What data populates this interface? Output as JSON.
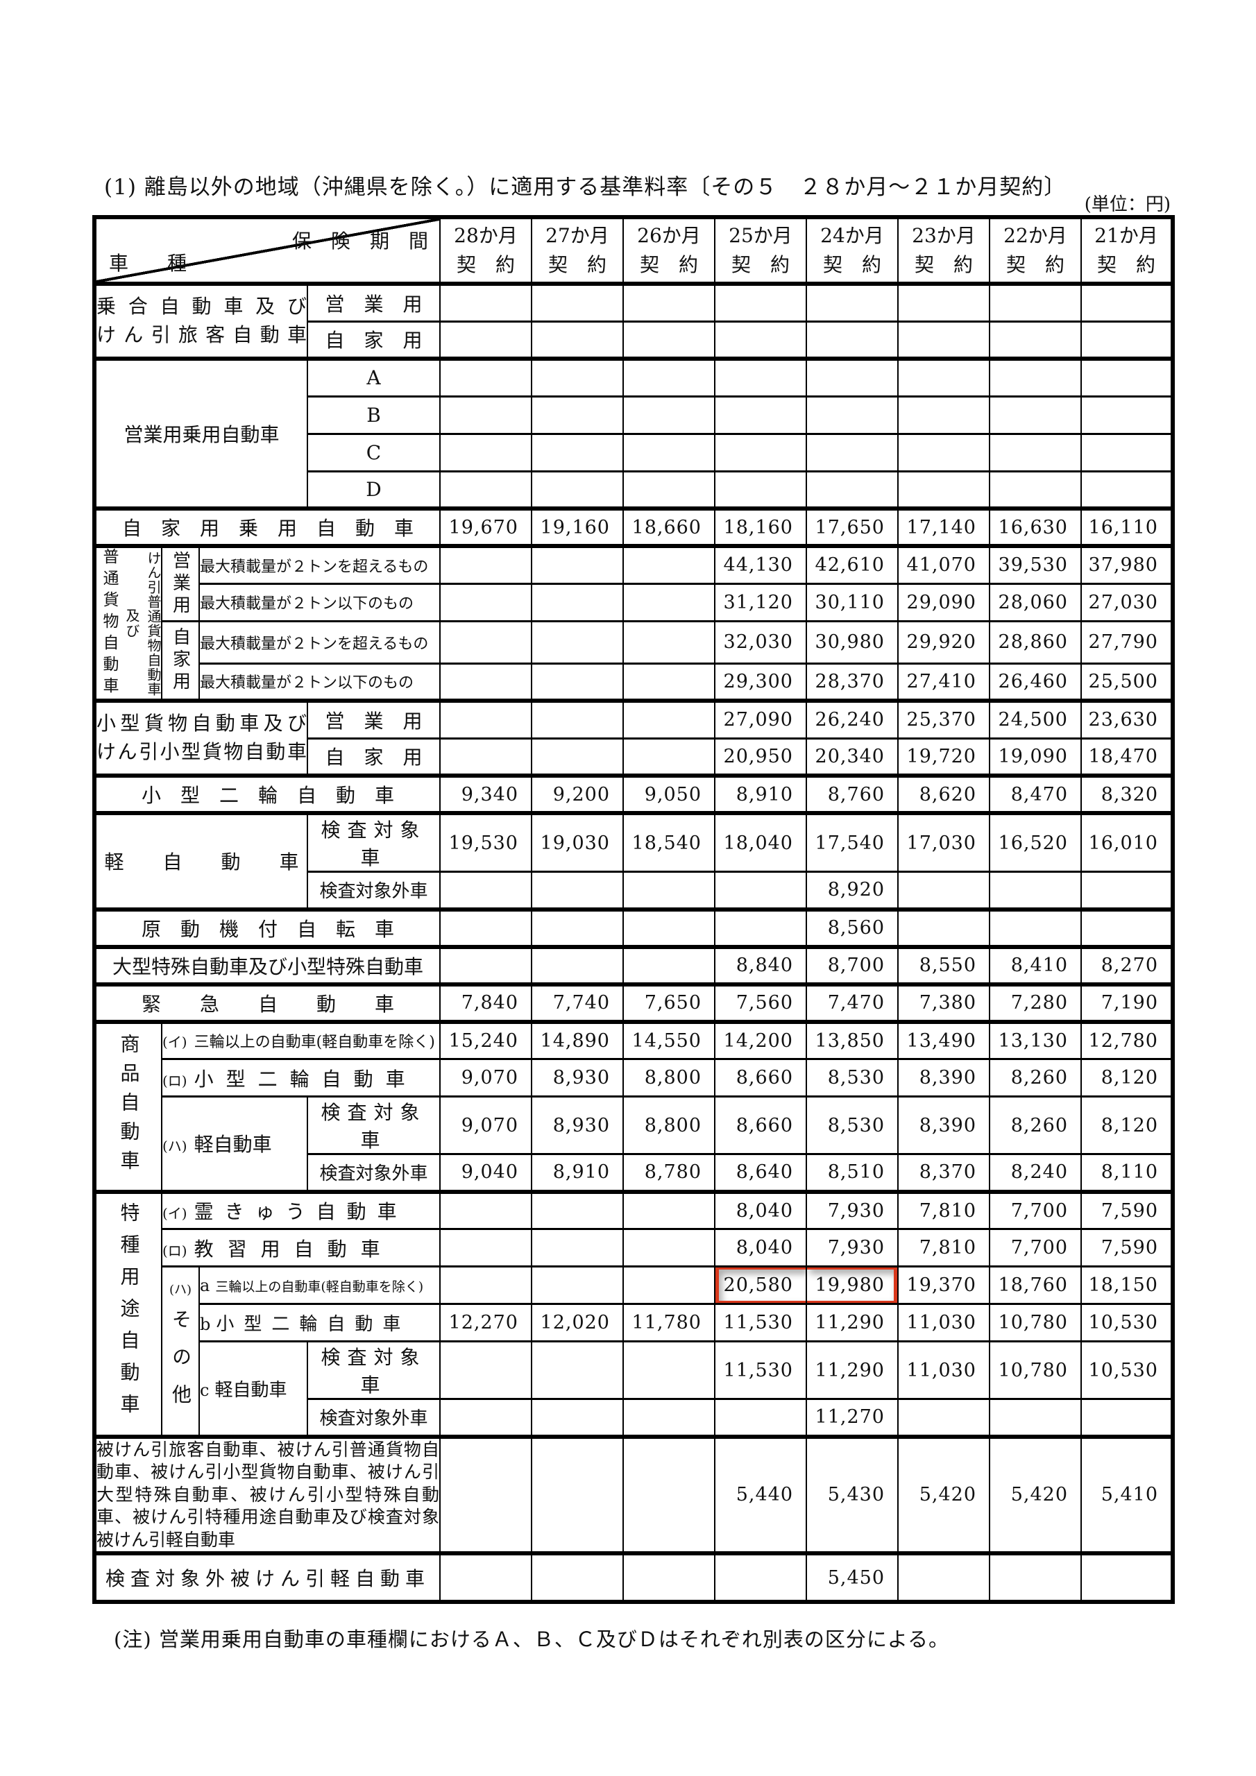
{
  "page": {
    "title": "(1) 離島以外の地域（沖縄県を除く。）に適用する基準料率〔その５　２８か月～２１か月契約〕",
    "unit": "(単位：円)",
    "footnote": "(注) 営業用乗用自動車の車種欄におけるＡ、Ｂ、Ｃ及びＤはそれぞれ別表の区分による。"
  },
  "table": {
    "corner_top": "保　険　期　間",
    "corner_bottom": "車　　種",
    "contract_label": "契　約",
    "periods": [
      "28か月",
      "27か月",
      "26か月",
      "25か月",
      "24か月",
      "23か月",
      "22か月",
      "21か月"
    ],
    "highlight": {
      "row": 25,
      "cols": [
        3,
        4
      ],
      "color": "#d9381c"
    },
    "rows": [
      {
        "group": "乗合自動車及び\nけん引旅客自動車",
        "label": "営　業　用",
        "values": [
          "",
          "",
          "",
          "",
          "",
          "",
          "",
          ""
        ]
      },
      {
        "label": "自　家　用",
        "values": [
          "",
          "",
          "",
          "",
          "",
          "",
          "",
          ""
        ]
      },
      {
        "group": "営業用乗用自動車",
        "label": "A",
        "values": [
          "",
          "",
          "",
          "",
          "",
          "",
          "",
          ""
        ]
      },
      {
        "label": "B",
        "values": [
          "",
          "",
          "",
          "",
          "",
          "",
          "",
          ""
        ]
      },
      {
        "label": "C",
        "values": [
          "",
          "",
          "",
          "",
          "",
          "",
          "",
          ""
        ]
      },
      {
        "label": "D",
        "values": [
          "",
          "",
          "",
          "",
          "",
          "",
          "",
          ""
        ]
      },
      {
        "label": "自　家　用　乗　用　自　動　車",
        "values": [
          "19,670",
          "19,160",
          "18,660",
          "18,160",
          "17,650",
          "17,140",
          "16,630",
          "16,110"
        ]
      },
      {
        "group_main": "普通貨物自動車",
        "group_mid": "及び",
        "group_sub": "けん引普通貨物自動車",
        "vlabel": "営業用",
        "label": "最大積載量が２トンを超えるもの",
        "values": [
          "",
          "",
          "",
          "44,130",
          "42,610",
          "41,070",
          "39,530",
          "37,980"
        ]
      },
      {
        "label": "最大積載量が２トン以下のもの",
        "values": [
          "",
          "",
          "",
          "31,120",
          "30,110",
          "29,090",
          "28,060",
          "27,030"
        ]
      },
      {
        "vlabel": "自家用",
        "label": "最大積載量が２トンを超えるもの",
        "values": [
          "",
          "",
          "",
          "32,030",
          "30,980",
          "29,920",
          "28,860",
          "27,790"
        ]
      },
      {
        "label": "最大積載量が２トン以下のもの",
        "values": [
          "",
          "",
          "",
          "29,300",
          "28,370",
          "27,410",
          "26,460",
          "25,500"
        ]
      },
      {
        "group": "小型貨物自動車及び\nけん引小型貨物自動車",
        "label": "営　業　用",
        "values": [
          "",
          "",
          "",
          "27,090",
          "26,240",
          "25,370",
          "24,500",
          "23,630"
        ]
      },
      {
        "label": "自　家　用",
        "values": [
          "",
          "",
          "",
          "20,950",
          "20,340",
          "19,720",
          "19,090",
          "18,470"
        ]
      },
      {
        "label": "小　型　二　輪　自　動　車",
        "values": [
          "9,340",
          "9,200",
          "9,050",
          "8,910",
          "8,760",
          "8,620",
          "8,470",
          "8,320"
        ]
      },
      {
        "group": "軽　　自　　動　　車",
        "label": "検査対象車",
        "values": [
          "19,530",
          "19,030",
          "18,540",
          "18,040",
          "17,540",
          "17,030",
          "16,520",
          "16,010"
        ]
      },
      {
        "label": "検査対象外車",
        "values": [
          "",
          "",
          "",
          "",
          "8,920",
          "",
          "",
          ""
        ]
      },
      {
        "label": "原　動　機　付　自　転　車",
        "values": [
          "",
          "",
          "",
          "",
          "8,560",
          "",
          "",
          ""
        ]
      },
      {
        "label": "大型特殊自動車及び小型特殊自動車",
        "values": [
          "",
          "",
          "",
          "8,840",
          "8,700",
          "8,550",
          "8,410",
          "8,270"
        ]
      },
      {
        "label": "緊　　急　　自　　動　　車",
        "values": [
          "7,840",
          "7,740",
          "7,650",
          "7,560",
          "7,470",
          "7,380",
          "7,280",
          "7,190"
        ]
      },
      {
        "vgroup": "商品自動車",
        "prefix": "(イ)",
        "label": "三輪以上の自動車(軽自動車を除く)",
        "values": [
          "15,240",
          "14,890",
          "14,550",
          "14,200",
          "13,850",
          "13,490",
          "13,130",
          "12,780"
        ]
      },
      {
        "prefix": "(ロ)",
        "label": "小型二輪自動車",
        "values": [
          "9,070",
          "8,930",
          "8,800",
          "8,660",
          "8,530",
          "8,390",
          "8,260",
          "8,120"
        ]
      },
      {
        "prefix": "(ハ)",
        "group": "軽自動車",
        "label": "検査対象車",
        "values": [
          "9,070",
          "8,930",
          "8,800",
          "8,660",
          "8,530",
          "8,390",
          "8,260",
          "8,120"
        ]
      },
      {
        "label": "検査対象外車",
        "values": [
          "9,040",
          "8,910",
          "8,780",
          "8,640",
          "8,510",
          "8,370",
          "8,240",
          "8,110"
        ]
      },
      {
        "vgroup": "特種用途自動車",
        "prefix": "(イ)",
        "label": "霊きゅう自動車",
        "values": [
          "",
          "",
          "",
          "8,040",
          "7,930",
          "7,810",
          "7,700",
          "7,590"
        ]
      },
      {
        "prefix": "(ロ)",
        "label": "教習用自動車",
        "values": [
          "",
          "",
          "",
          "8,040",
          "7,930",
          "7,810",
          "7,700",
          "7,590"
        ]
      },
      {
        "vprefix": "(ハ)",
        "vgroup2": "その他",
        "prefix": "a",
        "label": "三輪以上の自動車(軽自動車を除く)",
        "values": [
          "",
          "",
          "",
          "20,580",
          "19,980",
          "19,370",
          "18,760",
          "18,150"
        ]
      },
      {
        "prefix": "b",
        "label": "小型二輪自動車",
        "values": [
          "12,270",
          "12,020",
          "11,780",
          "11,530",
          "11,290",
          "11,030",
          "10,780",
          "10,530"
        ]
      },
      {
        "prefix": "c",
        "group": "軽自動車",
        "label": "検査対象車",
        "values": [
          "",
          "",
          "",
          "11,530",
          "11,290",
          "11,030",
          "10,780",
          "10,530"
        ]
      },
      {
        "label": "検査対象外車",
        "values": [
          "",
          "",
          "",
          "",
          "11,270",
          "",
          "",
          ""
        ]
      },
      {
        "label": "被けん引旅客自動車、被けん引普通貨物自動車、被けん引小型貨物自動車、被けん引大型特殊自動車、被けん引小型特殊自動車、被けん引特種用途自動車及び検査対象被けん引軽自動車",
        "values": [
          "",
          "",
          "",
          "5,440",
          "5,430",
          "5,420",
          "5,420",
          "5,410"
        ]
      },
      {
        "label": "検査対象外被けん引軽自動車",
        "values": [
          "",
          "",
          "",
          "",
          "5,450",
          "",
          "",
          ""
        ]
      }
    ]
  }
}
